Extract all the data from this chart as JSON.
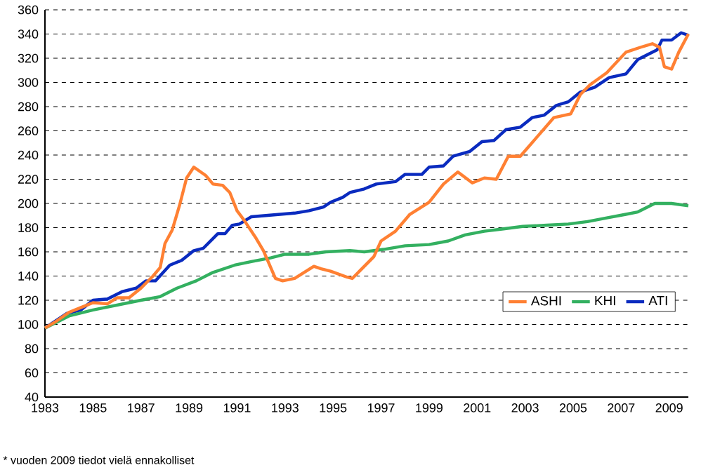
{
  "chart_data": {
    "type": "line",
    "xlim": [
      1983,
      2009.8
    ],
    "ylim": [
      40,
      360
    ],
    "xticks": [
      1983,
      1985,
      1987,
      1989,
      1991,
      1993,
      1995,
      1997,
      1999,
      2001,
      2003,
      2005,
      2007,
      2009
    ],
    "yticks": [
      40,
      60,
      80,
      100,
      120,
      140,
      160,
      180,
      200,
      220,
      240,
      260,
      280,
      300,
      320,
      340,
      360
    ],
    "grid": "y",
    "legend": "bottom right",
    "line_style": "solid",
    "marker": "none",
    "annotations": [
      "* vuoden 2009 tiedot vielä ennakolliset"
    ],
    "series": [
      {
        "name": "ASHI",
        "color": "#ff8033",
        "x": [
          1983.0,
          1983.5,
          1984.0,
          1984.5,
          1985.0,
          1985.6,
          1986.0,
          1986.5,
          1987.0,
          1987.5,
          1987.8,
          1988.0,
          1988.3,
          1988.6,
          1988.9,
          1989.2,
          1989.7,
          1990.0,
          1990.4,
          1990.7,
          1991.0,
          1991.3,
          1991.8,
          1992.1,
          1992.6,
          1992.9,
          1993.4,
          1993.8,
          1994.2,
          1994.5,
          1994.9,
          1995.6,
          1995.8,
          1996.2,
          1996.7,
          1997.0,
          1997.6,
          1998.2,
          1999.0,
          1999.6,
          2000.2,
          2000.8,
          2001.3,
          2001.8,
          2002.3,
          2002.8,
          2003.5,
          2004.2,
          2004.9,
          2005.3,
          2005.7,
          2006.4,
          2007.2,
          2007.8,
          2008.3,
          2008.6,
          2008.8,
          2009.1,
          2009.4,
          2009.8
        ],
        "values": [
          97,
          103,
          110,
          114,
          118,
          117,
          122,
          122,
          130,
          140,
          147,
          167,
          178,
          198,
          221,
          230,
          223,
          216,
          215,
          209,
          194,
          186,
          171,
          161,
          138,
          136,
          138,
          143,
          148,
          146,
          144,
          139,
          138,
          146,
          156,
          169,
          177,
          191,
          201,
          216,
          226,
          217,
          221,
          220,
          239,
          239,
          255,
          271,
          274,
          290,
          298,
          308,
          325,
          329,
          332,
          329,
          313,
          311,
          325,
          340
        ]
      },
      {
        "name": "KHI",
        "color": "#33b060",
        "x": [
          1983.0,
          1984.0,
          1985.0,
          1986.0,
          1987.0,
          1987.8,
          1988.5,
          1989.3,
          1990.0,
          1990.9,
          1991.6,
          1992.4,
          1993.0,
          1994.0,
          1994.7,
          1995.7,
          1996.3,
          1997.1,
          1998.0,
          1999.0,
          1999.8,
          2000.5,
          2001.3,
          2002.1,
          2002.9,
          2003.9,
          2004.8,
          2005.6,
          2006.4,
          2007.2,
          2007.7,
          2008.4,
          2009.1,
          2009.8
        ],
        "values": [
          97,
          107,
          112,
          116,
          120,
          123,
          130,
          136,
          143,
          149,
          152,
          155,
          158,
          158,
          160,
          161,
          160,
          162,
          165,
          166,
          169,
          174,
          177,
          179,
          181,
          182,
          183,
          185,
          188,
          191,
          193,
          200,
          200,
          198
        ]
      },
      {
        "name": "ATI",
        "color": "#0a2bbf",
        "x": [
          1983.0,
          1983.9,
          1984.5,
          1985.0,
          1985.6,
          1986.2,
          1986.8,
          1987.2,
          1987.6,
          1988.2,
          1988.7,
          1989.2,
          1989.6,
          1990.2,
          1990.5,
          1990.8,
          1991.1,
          1991.6,
          1992.2,
          1992.8,
          1993.4,
          1994.0,
          1994.6,
          1994.9,
          1995.4,
          1995.7,
          1996.3,
          1996.8,
          1997.6,
          1998.0,
          1998.7,
          1999.0,
          1999.6,
          2000.0,
          2000.7,
          2001.2,
          2001.7,
          2002.2,
          2002.8,
          2003.3,
          2003.8,
          2004.3,
          2004.8,
          2005.3,
          2005.9,
          2006.5,
          2007.2,
          2007.7,
          2008.5,
          2008.7,
          2009.1,
          2009.5,
          2009.8
        ],
        "values": [
          97,
          109,
          112,
          120,
          121,
          127,
          130,
          136,
          136,
          149,
          153,
          161,
          163,
          175,
          175,
          182,
          183,
          189,
          190,
          191,
          192,
          194,
          197,
          201,
          205,
          209,
          212,
          216,
          218,
          224,
          224,
          230,
          231,
          239,
          243,
          251,
          252,
          261,
          263,
          271,
          273,
          281,
          284,
          292,
          296,
          304,
          307,
          319,
          327,
          335,
          335,
          341,
          339
        ]
      }
    ]
  }
}
